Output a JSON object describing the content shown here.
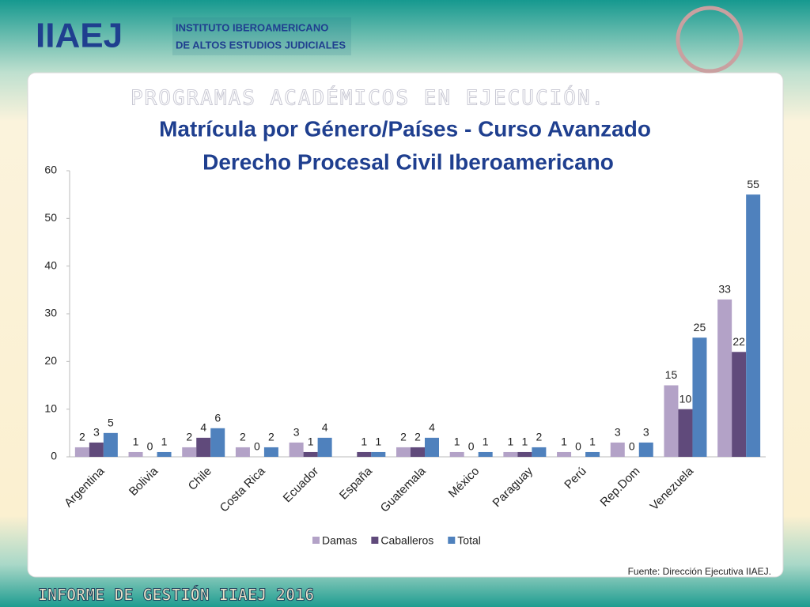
{
  "header": {
    "logo": "IIAEJ",
    "line1": "INSTITUTO IBEROAMERICANO",
    "line2": "DE ALTOS ESTUDIOS JUDICIALES"
  },
  "slide_heading": "PROGRAMAS ACADÉMICOS EN EJECUCIÓN.",
  "source": "Fuente: Dirección Ejecutiva IIAEJ.",
  "footer": "INFORME DE GESTIÓN IIAEJ 2016",
  "chart_data": {
    "type": "bar",
    "title": [
      "Matrícula por Género/Países - Curso Avanzado",
      "Derecho Procesal Civil Iberoamericano"
    ],
    "categories": [
      "Argentina",
      "Bolivia",
      "Chile",
      "Costa Rica",
      "Ecuador",
      "España",
      "Guatemala",
      "México",
      "Paraguay",
      "Perú",
      "Rep.Dom",
      "Venezuela",
      null
    ],
    "series": [
      {
        "name": "Damas",
        "color": "#b3a2c7",
        "values": [
          2,
          1,
          2,
          2,
          3,
          null,
          2,
          1,
          1,
          1,
          3,
          15,
          33
        ]
      },
      {
        "name": "Caballeros",
        "color": "#604a7b",
        "values": [
          3,
          0,
          4,
          0,
          1,
          1,
          2,
          0,
          1,
          0,
          0,
          10,
          22
        ]
      },
      {
        "name": "Total",
        "color": "#4f81bd",
        "values": [
          5,
          1,
          6,
          2,
          4,
          1,
          4,
          1,
          2,
          1,
          3,
          25,
          55
        ]
      }
    ],
    "ylim": [
      0,
      60
    ],
    "yticks": [
      0,
      10,
      20,
      30,
      40,
      50,
      60
    ],
    "grid": false,
    "legend": "bottom"
  }
}
